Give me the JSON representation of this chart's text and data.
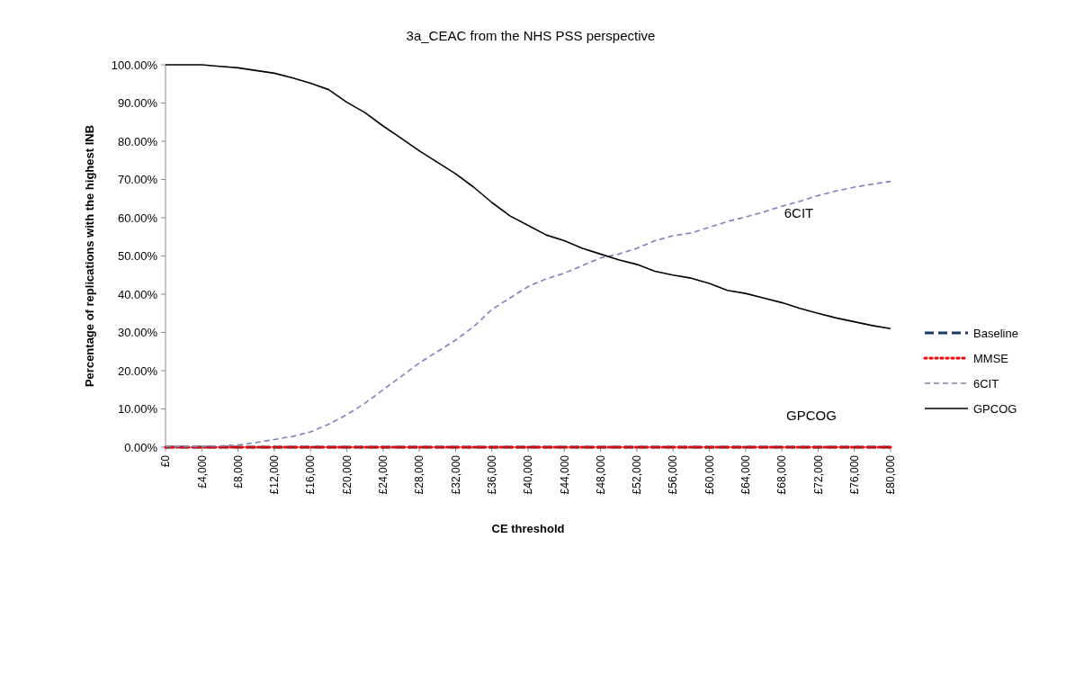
{
  "chart_data": {
    "type": "line",
    "title": "3a_CEAC from the NHS PSS perspective",
    "xlabel": "CE threshold",
    "ylabel": "Percentage of replications with the highest INB",
    "x": [
      0,
      2000,
      4000,
      6000,
      8000,
      10000,
      12000,
      14000,
      16000,
      18000,
      20000,
      22000,
      24000,
      26000,
      28000,
      30000,
      32000,
      34000,
      36000,
      38000,
      40000,
      42000,
      44000,
      46000,
      48000,
      50000,
      52000,
      54000,
      56000,
      58000,
      60000,
      62000,
      64000,
      66000,
      68000,
      70000,
      72000,
      74000,
      76000,
      78000,
      80000
    ],
    "series": [
      {
        "name": "Baseline",
        "color": "#1f3864",
        "line_style": "dashed",
        "values": [
          0,
          0,
          0,
          0,
          0,
          0,
          0,
          0,
          0,
          0,
          0,
          0,
          0,
          0,
          0,
          0,
          0,
          0,
          0,
          0,
          0,
          0,
          0,
          0,
          0,
          0,
          0,
          0,
          0,
          0,
          0,
          0,
          0,
          0,
          0,
          0,
          0,
          0,
          0,
          0,
          0
        ]
      },
      {
        "name": "MMSE",
        "color": "#ff0000",
        "line_style": "dotted",
        "values": [
          0,
          0,
          0,
          0,
          0,
          0,
          0,
          0,
          0,
          0,
          0,
          0,
          0,
          0,
          0,
          0,
          0,
          0,
          0,
          0,
          0,
          0,
          0,
          0,
          0,
          0,
          0,
          0,
          0,
          0,
          0,
          0,
          0,
          0,
          0,
          0,
          0,
          0,
          0,
          0,
          0
        ]
      },
      {
        "name": "6CIT",
        "color": "#7f7fbf",
        "line_style": "dashed",
        "values": [
          0.2,
          0.2,
          0.2,
          0.3,
          0.6,
          1.2,
          2,
          2.8,
          4,
          6,
          8.5,
          11.5,
          15,
          18.5,
          22,
          25,
          28,
          31.5,
          36,
          39,
          42,
          44,
          45.5,
          47.5,
          49.5,
          50.5,
          52,
          54,
          55.3,
          56,
          57.5,
          59,
          60.2,
          61.5,
          63,
          64.3,
          65.8,
          67,
          68,
          68.8,
          69.5
        ]
      },
      {
        "name": "GPCOG",
        "color": "#000000",
        "line_style": "solid",
        "values": [
          100,
          100,
          100,
          99.6,
          99.2,
          98.5,
          97.8,
          96.6,
          95.2,
          93.5,
          90.2,
          87.5,
          84,
          80.8,
          77.5,
          74.5,
          71.5,
          68,
          64,
          60.5,
          58,
          55.5,
          54,
          52,
          50.5,
          49,
          47.8,
          46,
          45,
          44.2,
          42.8,
          41,
          40.2,
          39,
          37.8,
          36.3,
          35,
          33.8,
          32.8,
          31.8,
          31
        ]
      }
    ],
    "xlim": [
      0,
      80000
    ],
    "xticks": [
      {
        "value": 0,
        "label": "£0"
      },
      {
        "value": 4000,
        "label": "£4,000"
      },
      {
        "value": 8000,
        "label": "£8,000"
      },
      {
        "value": 12000,
        "label": "£12,000"
      },
      {
        "value": 16000,
        "label": "£16,000"
      },
      {
        "value": 20000,
        "label": "£20,000"
      },
      {
        "value": 24000,
        "label": "£24,000"
      },
      {
        "value": 28000,
        "label": "£28,000"
      },
      {
        "value": 32000,
        "label": "£32,000"
      },
      {
        "value": 36000,
        "label": "£36,000"
      },
      {
        "value": 40000,
        "label": "£40,000"
      },
      {
        "value": 44000,
        "label": "£44,000"
      },
      {
        "value": 48000,
        "label": "£48,000"
      },
      {
        "value": 52000,
        "label": "£52,000"
      },
      {
        "value": 56000,
        "label": "£56,000"
      },
      {
        "value": 60000,
        "label": "£60,000"
      },
      {
        "value": 64000,
        "label": "£64,000"
      },
      {
        "value": 68000,
        "label": "£68,000"
      },
      {
        "value": 72000,
        "label": "£72,000"
      },
      {
        "value": 76000,
        "label": "£76,000"
      },
      {
        "value": 80000,
        "label": "£80,000"
      }
    ],
    "ylim": [
      0,
      100
    ],
    "yticks": [
      {
        "value": 0,
        "label": "0.00%"
      },
      {
        "value": 10,
        "label": "10.00%"
      },
      {
        "value": 20,
        "label": "20.00%"
      },
      {
        "value": 30,
        "label": "30.00%"
      },
      {
        "value": 40,
        "label": "40.00%"
      },
      {
        "value": 50,
        "label": "50.00%"
      },
      {
        "value": 60,
        "label": "60.00%"
      },
      {
        "value": 70,
        "label": "70.00%"
      },
      {
        "value": 80,
        "label": "80.00%"
      },
      {
        "value": 90,
        "label": "90.00%"
      },
      {
        "value": 100,
        "label": "100.00%"
      }
    ],
    "annotations": [
      "6CIT",
      "GPCOG"
    ],
    "grid": false,
    "legend": "right"
  }
}
